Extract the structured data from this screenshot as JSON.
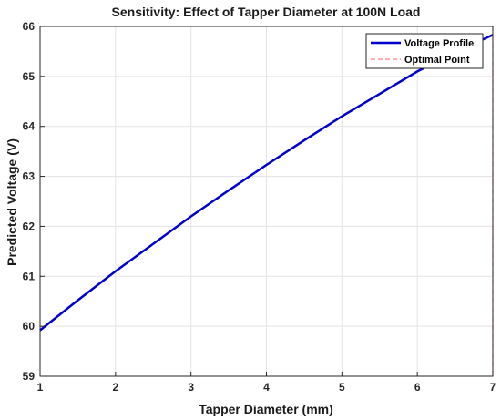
{
  "chart_data": {
    "type": "line",
    "title": "Sensitivity: Effect of Tapper Diameter at 100N Load",
    "xlabel": "Tapper Diameter (mm)",
    "ylabel": "Predicted Voltage (V)",
    "xlim": [
      1,
      7
    ],
    "ylim": [
      59,
      66
    ],
    "xticks": [
      1,
      2,
      3,
      4,
      5,
      6,
      7
    ],
    "yticks": [
      59,
      60,
      61,
      62,
      63,
      64,
      65,
      66
    ],
    "grid": true,
    "legend_position": "top-right",
    "series": [
      {
        "name": "Voltage Profile",
        "color": "#0000cc",
        "style": "solid",
        "x": [
          1,
          1.5,
          2,
          2.5,
          3,
          3.5,
          4,
          4.5,
          5,
          5.5,
          6,
          6.5,
          7
        ],
        "y": [
          59.92,
          60.52,
          61.1,
          61.65,
          62.2,
          62.72,
          63.23,
          63.72,
          64.2,
          64.65,
          65.1,
          65.48,
          65.83
        ]
      },
      {
        "name": "Optimal Point",
        "color": "#ff8080",
        "style": "dashed",
        "x": [
          7,
          7
        ],
        "y": [
          59,
          66
        ]
      }
    ]
  }
}
